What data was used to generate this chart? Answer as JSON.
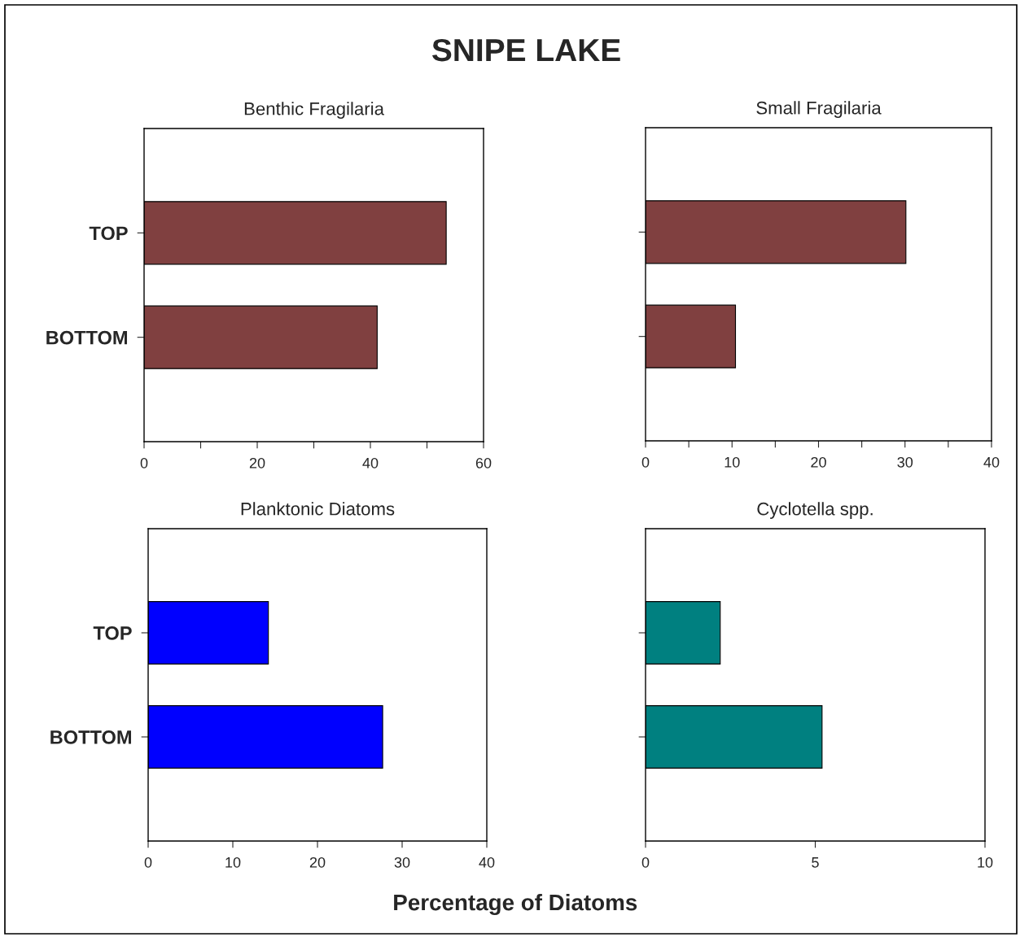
{
  "chart_data": [
    {
      "type": "bar",
      "orientation": "horizontal",
      "title": "Benthic Fragilaria",
      "annotations": [
        "SNIPE LAKE",
        "Percentage of Diatoms"
      ],
      "categories": [
        "TOP",
        "BOTTOM"
      ],
      "values": [
        53.4,
        41.2
      ],
      "color": "#804040",
      "xlim": [
        0,
        60
      ],
      "xticks": [
        0,
        {
          "value": 10,
          "label": null
        },
        20,
        {
          "value": 30,
          "label": null
        },
        40,
        {
          "value": 50,
          "label": null
        },
        60
      ],
      "grid": false,
      "legend": false
    },
    {
      "type": "bar",
      "orientation": "horizontal",
      "title": "Small Fragilaria",
      "categories": [
        null,
        null
      ],
      "values": [
        30.1,
        10.4
      ],
      "color": "#804040",
      "xlim": [
        0,
        40
      ],
      "xticks": [
        0,
        {
          "value": 5,
          "label": null
        },
        10,
        {
          "value": 15,
          "label": null
        },
        20,
        {
          "value": 25,
          "label": null
        },
        30,
        {
          "value": 35,
          "label": null
        },
        40
      ],
      "tick_labels": "x",
      "grid": false,
      "legend": false
    },
    {
      "type": "bar",
      "orientation": "horizontal",
      "title": "Planktonic Diatoms",
      "categories": [
        "TOP",
        "BOTTOM"
      ],
      "values": [
        14.2,
        27.7
      ],
      "color": "#0000ff",
      "xlim": [
        0,
        40
      ],
      "xticks": [
        0,
        10,
        20,
        30,
        40
      ],
      "grid": false,
      "legend": false
    },
    {
      "type": "bar",
      "orientation": "horizontal",
      "title": "Cyclotella spp.",
      "categories": [
        null,
        null
      ],
      "values": [
        2.2,
        5.2
      ],
      "color": "#008080",
      "xlim": [
        0,
        10
      ],
      "xticks": [
        0,
        5,
        10
      ],
      "tick_labels": "x",
      "grid": false,
      "legend": false
    }
  ]
}
